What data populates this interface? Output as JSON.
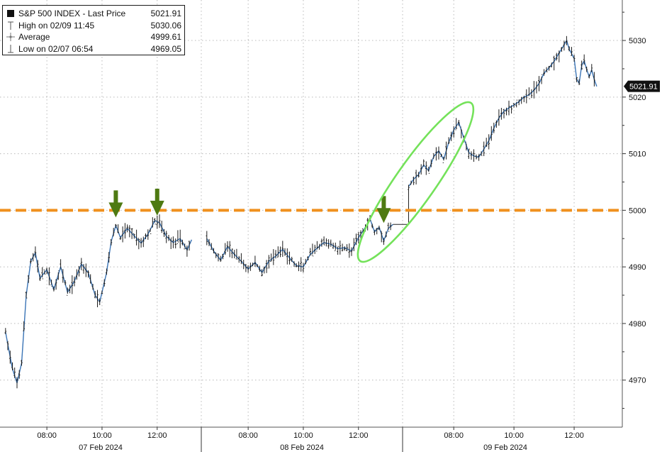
{
  "chart_data": {
    "type": "line",
    "title": "S&P 500 INDEX - Last Price",
    "legend": {
      "placement": "top-left",
      "entries": [
        {
          "label": "S&P 500 INDEX - Last Price",
          "value": "5021.91",
          "marker": "black-square"
        },
        {
          "label": "High on 02/09 11:45",
          "value": "5030.06",
          "marker": "high-marker"
        },
        {
          "label": "Average",
          "value": "4999.61",
          "marker": "average-marker"
        },
        {
          "label": "Low on 02/07 06:54",
          "value": "4969.05",
          "marker": "low-marker"
        }
      ]
    },
    "last_price_label": "5021.91",
    "y_axis": {
      "position": "right",
      "ylim": [
        4962,
        5037
      ],
      "ticks": [
        4970,
        4980,
        4990,
        5000,
        5010,
        5020,
        5030
      ],
      "tick_labels": [
        "4970",
        "4980",
        "4990",
        "5000",
        "5010",
        "5020",
        "5030"
      ]
    },
    "x_axis": {
      "time_ticks": [
        "08:00",
        "10:00",
        "12:00",
        "08:00",
        "10:00",
        "12:00",
        "08:00",
        "10:00",
        "12:00"
      ],
      "date_labels": [
        "07 Feb 2024",
        "08 Feb 2024",
        "09 Feb 2024"
      ],
      "days": [
        {
          "date": "07 Feb 2024",
          "start": "06:30",
          "end": "13:15"
        },
        {
          "date": "08 Feb 2024",
          "start": "06:30",
          "end": "13:15"
        },
        {
          "date": "09 Feb 2024",
          "start": "06:30",
          "end": "12:45"
        }
      ]
    },
    "grid": true,
    "reference_line": {
      "value": 5000,
      "style": "dashed",
      "color": "#f0901e"
    },
    "annotations": [
      {
        "type": "arrow",
        "day": "07 Feb 2024",
        "time": "10:30",
        "value": 4998.5
      },
      {
        "type": "arrow",
        "day": "07 Feb 2024",
        "time": "12:00",
        "value": 4998.8
      },
      {
        "type": "arrow",
        "day": "08 Feb 2024",
        "time": "12:55",
        "value": 4997.5
      },
      {
        "type": "ellipse",
        "description": "breakout region",
        "day": "08 Feb 2024 – 09 Feb 2024"
      }
    ],
    "series": [
      {
        "segments": [
          {
            "day": "07 Feb 2024",
            "points": [
              [
                "06:30",
                4978.5
              ],
              [
                "06:45",
                4972.0
              ],
              [
                "06:55",
                4969.5
              ],
              [
                "07:05",
                4973.0
              ],
              [
                "07:15",
                4985.0
              ],
              [
                "07:25",
                4991.0
              ],
              [
                "07:35",
                4992.5
              ],
              [
                "07:45",
                4988.0
              ],
              [
                "08:00",
                4989.5
              ],
              [
                "08:15",
                4986.0
              ],
              [
                "08:30",
                4990.0
              ],
              [
                "08:45",
                4985.5
              ],
              [
                "09:00",
                4987.5
              ],
              [
                "09:15",
                4990.5
              ],
              [
                "09:30",
                4989.0
              ],
              [
                "09:45",
                4985.0
              ],
              [
                "09:55",
                4983.8
              ],
              [
                "10:10",
                4989.0
              ],
              [
                "10:20",
                4994.5
              ],
              [
                "10:30",
                4997.3
              ],
              [
                "10:40",
                4995.2
              ],
              [
                "10:55",
                4996.8
              ],
              [
                "11:10",
                4995.5
              ],
              [
                "11:25",
                4994.2
              ],
              [
                "11:40",
                4995.8
              ],
              [
                "11:55",
                4998.2
              ],
              [
                "12:05",
                4997.8
              ],
              [
                "12:20",
                4995.4
              ],
              [
                "12:35",
                4994.3
              ],
              [
                "12:50",
                4995.0
              ],
              [
                "13:05",
                4993.0
              ],
              [
                "13:15",
                4994.8
              ]
            ]
          },
          {
            "day": "08 Feb 2024",
            "points": [
              [
                "06:30",
                4995.0
              ],
              [
                "06:45",
                4992.8
              ],
              [
                "07:00",
                4991.2
              ],
              [
                "07:15",
                4993.6
              ],
              [
                "07:30",
                4992.2
              ],
              [
                "07:45",
                4991.0
              ],
              [
                "08:00",
                4989.6
              ],
              [
                "08:15",
                4990.8
              ],
              [
                "08:30",
                4989.0
              ],
              [
                "08:45",
                4991.0
              ],
              [
                "09:00",
                4991.9
              ],
              [
                "09:15",
                4993.1
              ],
              [
                "09:30",
                4991.6
              ],
              [
                "09:45",
                4990.2
              ],
              [
                "10:00",
                4990.0
              ],
              [
                "10:15",
                4992.2
              ],
              [
                "10:30",
                4993.3
              ],
              [
                "10:45",
                4994.3
              ],
              [
                "11:00",
                4994.0
              ],
              [
                "11:15",
                4993.2
              ],
              [
                "11:30",
                4993.4
              ],
              [
                "11:45",
                4992.8
              ],
              [
                "12:00",
                4995.2
              ],
              [
                "12:15",
                4997.0
              ],
              [
                "12:25",
                4998.5
              ],
              [
                "12:35",
                4996.2
              ],
              [
                "12:45",
                4997.0
              ],
              [
                "12:55",
                4994.6
              ],
              [
                "13:05",
                4996.8
              ],
              [
                "13:15",
                4997.5
              ]
            ]
          },
          {
            "day": "09 Feb 2024",
            "points": [
              [
                "06:30",
                5004.2
              ],
              [
                "06:40",
                5005.5
              ],
              [
                "06:50",
                5006.3
              ],
              [
                "07:00",
                5008.0
              ],
              [
                "07:10",
                5007.0
              ],
              [
                "07:20",
                5009.5
              ],
              [
                "07:30",
                5010.5
              ],
              [
                "07:40",
                5009.0
              ],
              [
                "07:50",
                5012.0
              ],
              [
                "08:00",
                5014.2
              ],
              [
                "08:10",
                5015.5
              ],
              [
                "08:20",
                5012.8
              ],
              [
                "08:30",
                5010.2
              ],
              [
                "08:40",
                5009.6
              ],
              [
                "08:50",
                5009.4
              ],
              [
                "09:00",
                5010.8
              ],
              [
                "09:10",
                5012.3
              ],
              [
                "09:20",
                5014.5
              ],
              [
                "09:30",
                5016.3
              ],
              [
                "09:40",
                5017.5
              ],
              [
                "09:50",
                5018.1
              ],
              [
                "10:00",
                5018.6
              ],
              [
                "10:10",
                5019.2
              ],
              [
                "10:20",
                5020.0
              ],
              [
                "10:30",
                5020.4
              ],
              [
                "10:40",
                5021.2
              ],
              [
                "10:50",
                5022.4
              ],
              [
                "11:00",
                5024.2
              ],
              [
                "11:10",
                5025.2
              ],
              [
                "11:20",
                5026.3
              ],
              [
                "11:30",
                5027.8
              ],
              [
                "11:40",
                5029.2
              ],
              [
                "11:45",
                5030.0
              ],
              [
                "11:50",
                5028.5
              ],
              [
                "12:00",
                5026.8
              ],
              [
                "12:05",
                5023.2
              ],
              [
                "12:10",
                5022.4
              ],
              [
                "12:15",
                5025.6
              ],
              [
                "12:20",
                5026.4
              ],
              [
                "12:25",
                5024.9
              ],
              [
                "12:30",
                5023.6
              ],
              [
                "12:35",
                5024.8
              ],
              [
                "12:40",
                5023.1
              ],
              [
                "12:45",
                5021.9
              ]
            ]
          }
        ]
      }
    ]
  }
}
